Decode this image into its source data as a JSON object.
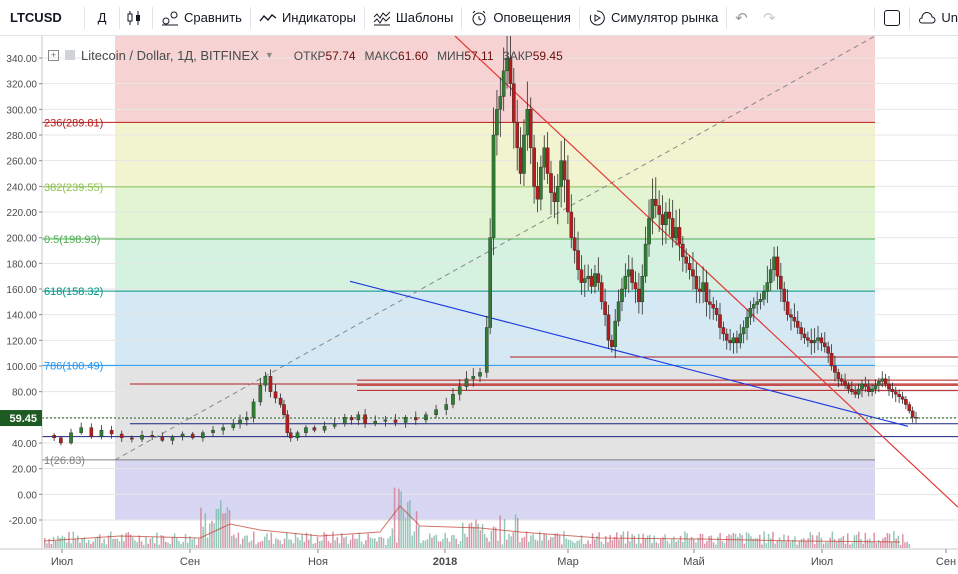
{
  "toolbar": {
    "symbol": "LTCUSD",
    "interval": "Д",
    "compare_label": "Сравнить",
    "indicators_label": "Индикаторы",
    "templates_label": "Шаблоны",
    "alerts_label": "Оповещения",
    "replay_label": "Симулятор рынка",
    "right_label": "Un"
  },
  "legend": {
    "title": "Litecoin / Dollar, 1Д, BITFINEX",
    "open_label": "ОТКР",
    "open_value": "57.74",
    "high_label": "МАКС",
    "high_value": "61.60",
    "low_label": "МИН",
    "low_value": "57.11",
    "close_label": "ЗАКР",
    "close_value": "59.45"
  },
  "colors": {
    "up": "#2e7d32",
    "down": "#b71c1c",
    "price_tag_bg": "#1e5b22",
    "fib_0": "#f4c3c3",
    "fib_236": "#eef0c0",
    "fib_382": "#d9f0c4",
    "fib_5": "#c7ecd6",
    "fib_618": "#c5e1ef",
    "fib_786": "#d9d9d9",
    "fib_1": "#c9c9ef"
  },
  "chart_data": {
    "type": "candlestick",
    "title": "Litecoin / Dollar, 1Д, BITFINEX",
    "y_ticks": [
      "340.00",
      "320.00",
      "300.00",
      "280.00",
      "260.00",
      "240.00",
      "220.00",
      "200.00",
      "180.00",
      "160.00",
      "140.00",
      "120.00",
      "100.00",
      "80.00",
      "60.00",
      "40.00",
      "20.00",
      "0.00",
      "-20.00"
    ],
    "x_labels": [
      "Июл",
      "Сен",
      "Ноя",
      "2018",
      "Мар",
      "Май",
      "Июл",
      "Сен"
    ],
    "last_price_label": "59.45",
    "fib_levels": [
      {
        "label": "236(289.81)",
        "value": 289.81,
        "color": "#b71c1c"
      },
      {
        "label": "382(239.55)",
        "value": 239.55,
        "color": "#8bc34a"
      },
      {
        "label": "0.5(198.93)",
        "value": 198.93,
        "color": "#4caf50"
      },
      {
        "label": "618(158.32)",
        "value": 158.32,
        "color": "#009688"
      },
      {
        "label": "786(100.49)",
        "value": 100.49,
        "color": "#2196f3"
      },
      {
        "label": "1(26.83)",
        "value": 26.83,
        "color": "#808080"
      }
    ],
    "price_path": [
      [
        0,
        46
      ],
      [
        6,
        44
      ],
      [
        10,
        40
      ],
      [
        16,
        48
      ],
      [
        22,
        52
      ],
      [
        28,
        45
      ],
      [
        34,
        50
      ],
      [
        40,
        47
      ],
      [
        46,
        44
      ],
      [
        52,
        43
      ],
      [
        58,
        46
      ],
      [
        64,
        45
      ],
      [
        70,
        42
      ],
      [
        76,
        45
      ],
      [
        82,
        47
      ],
      [
        88,
        44
      ],
      [
        94,
        48
      ],
      [
        100,
        50
      ],
      [
        106,
        52
      ],
      [
        112,
        55
      ],
      [
        116,
        58
      ],
      [
        120,
        60
      ],
      [
        124,
        72
      ],
      [
        128,
        85
      ],
      [
        131,
        92
      ],
      [
        134,
        80
      ],
      [
        137,
        75
      ],
      [
        140,
        70
      ],
      [
        142,
        62
      ],
      [
        144,
        48
      ],
      [
        146,
        44
      ],
      [
        150,
        48
      ],
      [
        155,
        52
      ],
      [
        160,
        50
      ],
      [
        166,
        53
      ],
      [
        172,
        55
      ],
      [
        178,
        60
      ],
      [
        182,
        58
      ],
      [
        186,
        62
      ],
      [
        190,
        55
      ],
      [
        196,
        57
      ],
      [
        202,
        58
      ],
      [
        208,
        56
      ],
      [
        214,
        60
      ],
      [
        220,
        58
      ],
      [
        226,
        62
      ],
      [
        232,
        66
      ],
      [
        238,
        70
      ],
      [
        242,
        78
      ],
      [
        246,
        84
      ],
      [
        250,
        90
      ],
      [
        254,
        92
      ],
      [
        258,
        95
      ],
      [
        262,
        130
      ],
      [
        264,
        200
      ],
      [
        266,
        280
      ],
      [
        268,
        300
      ],
      [
        270,
        310
      ],
      [
        272,
        330
      ],
      [
        274,
        340
      ],
      [
        276,
        320
      ],
      [
        278,
        290
      ],
      [
        280,
        270
      ],
      [
        282,
        250
      ],
      [
        284,
        280
      ],
      [
        286,
        300
      ],
      [
        288,
        270
      ],
      [
        290,
        240
      ],
      [
        292,
        230
      ],
      [
        294,
        255
      ],
      [
        296,
        270
      ],
      [
        298,
        250
      ],
      [
        300,
        235
      ],
      [
        302,
        228
      ],
      [
        304,
        240
      ],
      [
        306,
        260
      ],
      [
        308,
        245
      ],
      [
        310,
        220
      ],
      [
        312,
        200
      ],
      [
        314,
        190
      ],
      [
        316,
        175
      ],
      [
        318,
        165
      ],
      [
        320,
        168
      ],
      [
        322,
        170
      ],
      [
        324,
        162
      ],
      [
        326,
        172
      ],
      [
        328,
        165
      ],
      [
        330,
        150
      ],
      [
        332,
        140
      ],
      [
        334,
        120
      ],
      [
        336,
        115
      ],
      [
        338,
        135
      ],
      [
        340,
        150
      ],
      [
        342,
        160
      ],
      [
        344,
        170
      ],
      [
        346,
        175
      ],
      [
        348,
        165
      ],
      [
        350,
        160
      ],
      [
        352,
        150
      ],
      [
        354,
        170
      ],
      [
        356,
        195
      ],
      [
        358,
        215
      ],
      [
        360,
        230
      ],
      [
        362,
        225
      ],
      [
        364,
        218
      ],
      [
        366,
        210
      ],
      [
        368,
        220
      ],
      [
        370,
        215
      ],
      [
        372,
        200
      ],
      [
        374,
        208
      ],
      [
        376,
        195
      ],
      [
        378,
        185
      ],
      [
        380,
        180
      ],
      [
        382,
        175
      ],
      [
        384,
        170
      ],
      [
        386,
        160
      ],
      [
        388,
        158
      ],
      [
        390,
        165
      ],
      [
        392,
        150
      ],
      [
        394,
        148
      ],
      [
        396,
        145
      ],
      [
        398,
        140
      ],
      [
        400,
        130
      ],
      [
        402,
        125
      ],
      [
        404,
        120
      ],
      [
        406,
        118
      ],
      [
        408,
        122
      ],
      [
        410,
        118
      ],
      [
        412,
        125
      ],
      [
        414,
        130
      ],
      [
        416,
        138
      ],
      [
        418,
        145
      ],
      [
        420,
        148
      ],
      [
        422,
        150
      ],
      [
        424,
        152
      ],
      [
        426,
        158
      ],
      [
        428,
        165
      ],
      [
        430,
        175
      ],
      [
        432,
        185
      ],
      [
        434,
        170
      ],
      [
        436,
        160
      ],
      [
        438,
        150
      ],
      [
        440,
        140
      ],
      [
        442,
        138
      ],
      [
        444,
        135
      ],
      [
        446,
        130
      ],
      [
        448,
        125
      ],
      [
        450,
        122
      ],
      [
        452,
        120
      ],
      [
        454,
        118
      ],
      [
        456,
        120
      ],
      [
        458,
        122
      ],
      [
        460,
        118
      ],
      [
        462,
        115
      ],
      [
        464,
        110
      ],
      [
        466,
        100
      ],
      [
        468,
        95
      ],
      [
        470,
        90
      ],
      [
        472,
        88
      ],
      [
        474,
        85
      ],
      [
        476,
        82
      ],
      [
        478,
        80
      ],
      [
        480,
        78
      ],
      [
        482,
        82
      ],
      [
        484,
        86
      ],
      [
        486,
        84
      ],
      [
        488,
        80
      ],
      [
        490,
        82
      ],
      [
        492,
        85
      ],
      [
        494,
        88
      ],
      [
        496,
        90
      ],
      [
        498,
        86
      ],
      [
        500,
        82
      ],
      [
        502,
        80
      ],
      [
        504,
        78
      ],
      [
        506,
        76
      ],
      [
        508,
        74
      ],
      [
        510,
        70
      ],
      [
        512,
        65
      ],
      [
        514,
        60
      ],
      [
        516,
        59.45
      ]
    ]
  }
}
